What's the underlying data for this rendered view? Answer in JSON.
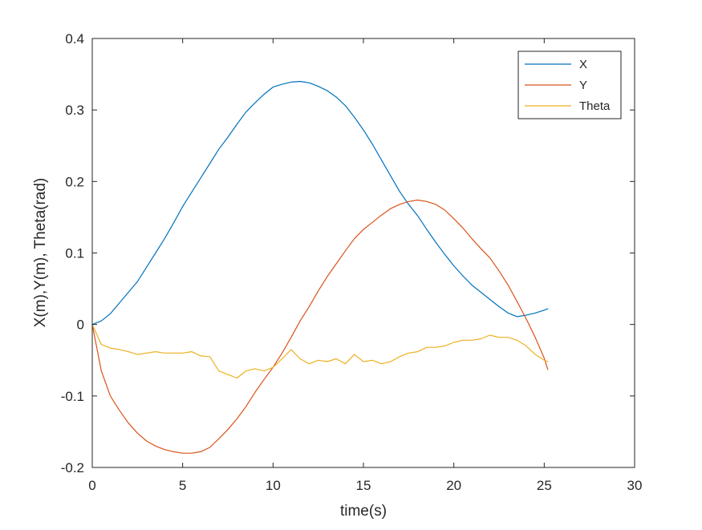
{
  "chart_data": {
    "type": "line",
    "title": "",
    "xlabel": "time(s)",
    "ylabel": "X(m),Y(m), Theta(rad)",
    "xlim": [
      0,
      30
    ],
    "ylim": [
      -0.2,
      0.4
    ],
    "xticks": [
      0,
      5,
      10,
      15,
      20,
      25,
      30
    ],
    "yticks": [
      -0.2,
      -0.1,
      0,
      0.1,
      0.2,
      0.3,
      0.4
    ],
    "xtick_labels": [
      "0",
      "5",
      "10",
      "15",
      "20",
      "25",
      "30"
    ],
    "ytick_labels": [
      "-0.2",
      "-0.1",
      "0",
      "0.1",
      "0.2",
      "0.3",
      "0.4"
    ],
    "grid": false,
    "legend_position": "top-right",
    "series": [
      {
        "name": "X",
        "color": "#0072BD",
        "x": [
          0,
          0.5,
          1,
          1.5,
          2,
          2.5,
          3,
          3.5,
          4,
          4.5,
          5,
          5.5,
          6,
          6.5,
          7,
          7.5,
          8,
          8.5,
          9,
          9.5,
          10,
          10.5,
          11,
          11.5,
          12,
          12.5,
          13,
          13.5,
          14,
          14.5,
          15,
          15.5,
          16,
          16.5,
          17,
          17.5,
          18,
          18.5,
          19,
          19.5,
          20,
          20.5,
          21,
          21.5,
          22,
          22.5,
          23,
          23.5,
          24,
          24.5,
          25,
          25.2
        ],
        "y": [
          0.0,
          0.005,
          0.015,
          0.03,
          0.045,
          0.06,
          0.08,
          0.1,
          0.12,
          0.142,
          0.165,
          0.185,
          0.205,
          0.225,
          0.245,
          0.262,
          0.28,
          0.297,
          0.31,
          0.322,
          0.332,
          0.336,
          0.339,
          0.34,
          0.338,
          0.333,
          0.327,
          0.318,
          0.306,
          0.29,
          0.272,
          0.252,
          0.23,
          0.208,
          0.186,
          0.168,
          0.152,
          0.133,
          0.115,
          0.098,
          0.082,
          0.068,
          0.055,
          0.045,
          0.035,
          0.025,
          0.016,
          0.011,
          0.013,
          0.016,
          0.02,
          0.022
        ]
      },
      {
        "name": "Y",
        "color": "#D95319",
        "x": [
          0,
          0.5,
          1,
          1.5,
          2,
          2.5,
          3,
          3.5,
          4,
          4.5,
          5,
          5.5,
          6,
          6.5,
          7,
          7.5,
          8,
          8.5,
          9,
          9.5,
          10,
          10.5,
          11,
          11.5,
          12,
          12.5,
          13,
          13.5,
          14,
          14.5,
          15,
          15.5,
          16,
          16.5,
          17,
          17.5,
          18,
          18.5,
          19,
          19.5,
          20,
          20.5,
          21,
          21.5,
          22,
          22.5,
          23,
          23.5,
          24,
          24.5,
          25,
          25.2
        ],
        "y": [
          0.0,
          -0.065,
          -0.1,
          -0.12,
          -0.138,
          -0.152,
          -0.163,
          -0.17,
          -0.175,
          -0.178,
          -0.18,
          -0.18,
          -0.178,
          -0.172,
          -0.16,
          -0.147,
          -0.132,
          -0.115,
          -0.095,
          -0.077,
          -0.06,
          -0.04,
          -0.018,
          0.005,
          0.025,
          0.047,
          0.067,
          0.085,
          0.103,
          0.12,
          0.133,
          0.143,
          0.153,
          0.162,
          0.168,
          0.172,
          0.174,
          0.172,
          0.168,
          0.16,
          0.148,
          0.135,
          0.12,
          0.106,
          0.093,
          0.075,
          0.055,
          0.032,
          0.008,
          -0.018,
          -0.047,
          -0.063
        ]
      },
      {
        "name": "Theta",
        "color": "#EDB120",
        "x": [
          0,
          0.5,
          1,
          1.5,
          2,
          2.5,
          3,
          3.5,
          4,
          4.5,
          5,
          5.5,
          6,
          6.5,
          7,
          7.5,
          8,
          8.5,
          9,
          9.5,
          10,
          10.5,
          11,
          11.5,
          12,
          12.5,
          13,
          13.5,
          14,
          14.5,
          15,
          15.5,
          16,
          16.5,
          17,
          17.5,
          18,
          18.5,
          19,
          19.5,
          20,
          20.5,
          21,
          21.5,
          22,
          22.5,
          23,
          23.5,
          24,
          24.5,
          25,
          25.2
        ],
        "y": [
          0.0,
          -0.028,
          -0.033,
          -0.035,
          -0.038,
          -0.042,
          -0.04,
          -0.038,
          -0.04,
          -0.04,
          -0.04,
          -0.038,
          -0.044,
          -0.045,
          -0.065,
          -0.07,
          -0.075,
          -0.065,
          -0.062,
          -0.065,
          -0.06,
          -0.048,
          -0.035,
          -0.048,
          -0.055,
          -0.05,
          -0.052,
          -0.048,
          -0.055,
          -0.042,
          -0.052,
          -0.05,
          -0.055,
          -0.052,
          -0.045,
          -0.04,
          -0.038,
          -0.032,
          -0.032,
          -0.03,
          -0.025,
          -0.022,
          -0.022,
          -0.02,
          -0.015,
          -0.018,
          -0.018,
          -0.022,
          -0.03,
          -0.042,
          -0.05,
          -0.052
        ]
      }
    ]
  }
}
